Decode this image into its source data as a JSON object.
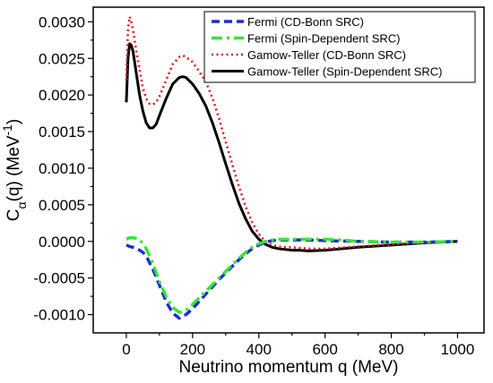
{
  "chart_data": {
    "type": "line",
    "xlabel": "Neutrino momentum q (MeV)",
    "ylabel": {
      "base": "C",
      "sub": "α",
      "mid": "(q) (MeV",
      "sup": "-1",
      "end": ")"
    },
    "xlim": [
      -100,
      1080
    ],
    "ylim": [
      -0.00125,
      0.0032
    ],
    "x_ticks": [
      0,
      200,
      400,
      600,
      800,
      1000
    ],
    "x_tick_labels": [
      "0",
      "200",
      "400",
      "600",
      "800",
      "1000"
    ],
    "y_ticks": [
      -0.001,
      -0.0005,
      0.0,
      0.0005,
      0.001,
      0.0015,
      0.002,
      0.0025,
      0.003
    ],
    "y_tick_labels": [
      "-0.0010",
      "-0.0005",
      "0.0000",
      "0.0005",
      "0.0010",
      "0.0015",
      "0.0020",
      "0.0025",
      "0.0030"
    ],
    "legend_position": "top-right",
    "series": [
      {
        "name": "Fermi (CD-Bonn SRC)",
        "color": "#1f2bd6",
        "dash": "dashed",
        "x": [
          0,
          10,
          20,
          30,
          40,
          50,
          60,
          80,
          100,
          120,
          140,
          160,
          180,
          200,
          220,
          240,
          260,
          280,
          300,
          320,
          340,
          360,
          380,
          400,
          420,
          440,
          460,
          480,
          500,
          550,
          600,
          700,
          800,
          900,
          1000
        ],
        "y": [
          -5e-05,
          -7e-05,
          -8e-05,
          -0.0001,
          -0.00012,
          -0.00015,
          -0.0002,
          -0.00038,
          -0.0006,
          -0.00082,
          -0.00098,
          -0.00105,
          -0.001,
          -0.00092,
          -0.00082,
          -0.00072,
          -0.00062,
          -0.00052,
          -0.00043,
          -0.00034,
          -0.00025,
          -0.00017,
          -0.0001,
          -5e-05,
          -1e-05,
          1e-05,
          2e-05,
          2e-05,
          2e-05,
          2e-05,
          1e-05,
          0.0,
          -1e-05,
          -1e-05,
          0.0
        ]
      },
      {
        "name": "Fermi (Spin-Dependent SRC)",
        "color": "#33e633",
        "dash": "dashdot",
        "x": [
          0,
          10,
          20,
          30,
          40,
          50,
          60,
          80,
          100,
          120,
          140,
          160,
          180,
          200,
          220,
          240,
          260,
          280,
          300,
          320,
          340,
          360,
          380,
          400,
          420,
          440,
          460,
          480,
          500,
          550,
          600,
          650,
          700,
          800,
          900,
          1000
        ],
        "y": [
          3e-05,
          5e-05,
          5e-05,
          4e-05,
          2e-05,
          -3e-05,
          -0.0001,
          -0.0003,
          -0.00055,
          -0.00075,
          -0.0009,
          -0.00097,
          -0.00094,
          -0.00086,
          -0.00077,
          -0.00068,
          -0.00059,
          -0.0005,
          -0.00041,
          -0.00032,
          -0.00023,
          -0.00015,
          -8e-05,
          -3e-05,
          0.0,
          2e-05,
          3e-05,
          3e-05,
          3e-05,
          3e-05,
          3e-05,
          2e-05,
          0.0,
          -1e-05,
          -1e-05,
          0.0
        ]
      },
      {
        "name": "Gamow-Teller (CD-Bonn SRC)",
        "color": "#e0191b",
        "dash": "dotted",
        "x": [
          0,
          5,
          10,
          15,
          20,
          30,
          40,
          50,
          60,
          70,
          80,
          90,
          100,
          120,
          140,
          160,
          170,
          180,
          200,
          220,
          240,
          260,
          280,
          300,
          320,
          340,
          360,
          380,
          400,
          420,
          440,
          460,
          480,
          500,
          550,
          600,
          700,
          800,
          900,
          1000
        ],
        "y": [
          0.0022,
          0.0029,
          0.00307,
          0.003,
          0.0029,
          0.0026,
          0.00235,
          0.0021,
          0.00195,
          0.00188,
          0.00187,
          0.0019,
          0.00198,
          0.0022,
          0.00242,
          0.00252,
          0.00254,
          0.00252,
          0.00245,
          0.00232,
          0.00218,
          0.00196,
          0.00168,
          0.00136,
          0.00105,
          0.00075,
          0.00048,
          0.00026,
          0.0001,
          0.0,
          -5e-05,
          -7e-05,
          -8e-05,
          -8e-05,
          -0.0001,
          -0.0001,
          -7e-05,
          -4e-05,
          -2e-05,
          0.0
        ]
      },
      {
        "name": "Gamow-Teller (Spin-Dependent SRC)",
        "color": "#000000",
        "dash": "solid",
        "x": [
          0,
          5,
          10,
          15,
          20,
          30,
          40,
          50,
          60,
          70,
          80,
          90,
          100,
          120,
          140,
          160,
          170,
          180,
          200,
          220,
          240,
          260,
          280,
          300,
          320,
          340,
          360,
          380,
          400,
          420,
          440,
          460,
          480,
          500,
          520,
          550,
          600,
          700,
          800,
          900,
          1000
        ],
        "y": [
          0.0019,
          0.0025,
          0.0027,
          0.00268,
          0.0026,
          0.0023,
          0.002,
          0.00178,
          0.00162,
          0.00155,
          0.00155,
          0.0016,
          0.00172,
          0.00195,
          0.00215,
          0.00224,
          0.00225,
          0.00224,
          0.00215,
          0.00202,
          0.00185,
          0.00162,
          0.00135,
          0.00106,
          0.00078,
          0.00052,
          0.00031,
          0.00014,
          3e-05,
          -4e-05,
          -8e-05,
          -0.0001,
          -0.00011,
          -0.00012,
          -0.00012,
          -0.00013,
          -0.00012,
          -8e-05,
          -5e-05,
          -2e-05,
          0.0
        ]
      }
    ]
  }
}
